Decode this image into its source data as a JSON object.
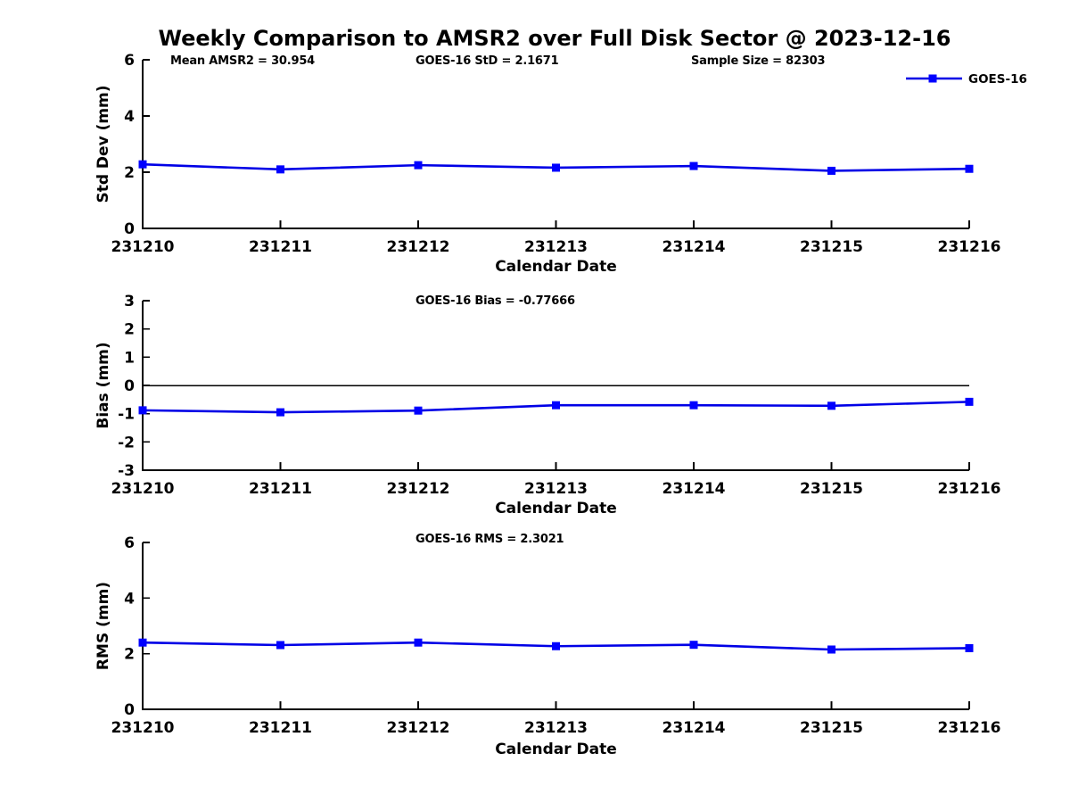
{
  "title": "Weekly Comparison to AMSR2 over Full Disk Sector @ 2023-12-16",
  "legend": {
    "label": "GOES-16"
  },
  "colors": {
    "line": "#0000E6",
    "marker": "#0000FF",
    "axis": "#000000",
    "text": "#000000",
    "zero_line": "#000000",
    "background": "#FFFFFF"
  },
  "chart_data": [
    {
      "type": "line",
      "key": "std-dev",
      "ylabel": "Std Dev (mm)",
      "xlabel": "Calendar Date",
      "categories": [
        "231210",
        "231211",
        "231212",
        "231213",
        "231214",
        "231215",
        "231216"
      ],
      "ylim": [
        0,
        6
      ],
      "yticks": [
        "0",
        "2",
        "4",
        "6"
      ],
      "grid": false,
      "legend_position": "top-right",
      "series": [
        {
          "name": "GOES-16",
          "values": [
            2.28,
            2.1,
            2.25,
            2.16,
            2.22,
            2.05,
            2.12
          ]
        }
      ],
      "annotations": [
        "Mean AMSR2 = 30.954",
        "GOES-16 StD = 2.1671",
        "Sample Size = 82303"
      ]
    },
    {
      "type": "line",
      "key": "bias",
      "ylabel": "Bias (mm)",
      "xlabel": "Calendar Date",
      "categories": [
        "231210",
        "231211",
        "231212",
        "231213",
        "231214",
        "231215",
        "231216"
      ],
      "ylim": [
        -3,
        3
      ],
      "yticks": [
        "3",
        "2",
        "1",
        "0",
        "-1",
        "-2",
        "-3"
      ],
      "zero_line": true,
      "grid": false,
      "series": [
        {
          "name": "GOES-16",
          "values": [
            -0.88,
            -0.95,
            -0.89,
            -0.7,
            -0.7,
            -0.72,
            -0.58
          ]
        }
      ],
      "annotations": [
        "GOES-16 Bias  = -0.77666"
      ]
    },
    {
      "type": "line",
      "key": "rms",
      "ylabel": "RMS (mm)",
      "xlabel": "Calendar Date",
      "categories": [
        "231210",
        "231211",
        "231212",
        "231213",
        "231214",
        "231215",
        "231216"
      ],
      "ylim": [
        0,
        6
      ],
      "yticks": [
        "0",
        "2",
        "4",
        "6"
      ],
      "grid": false,
      "series": [
        {
          "name": "GOES-16",
          "values": [
            2.4,
            2.31,
            2.4,
            2.27,
            2.32,
            2.15,
            2.2
          ]
        }
      ],
      "annotations": [
        "GOES-16 RMS = 2.3021"
      ]
    }
  ]
}
